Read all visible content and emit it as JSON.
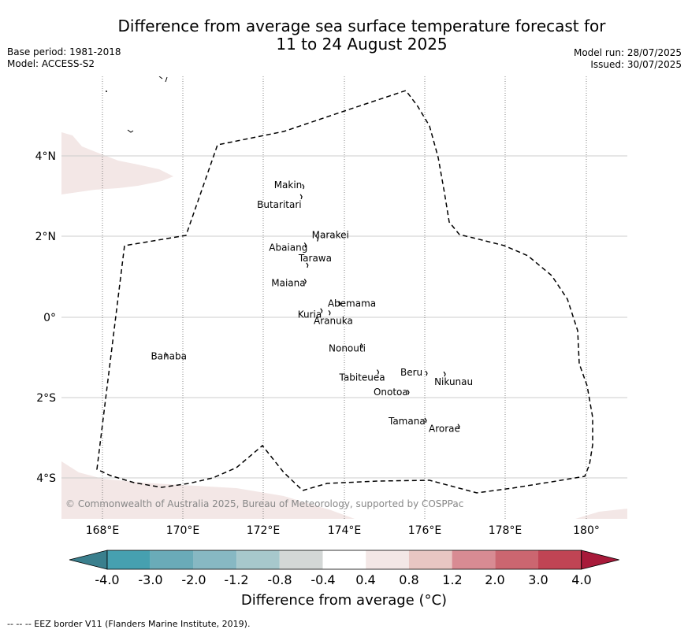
{
  "title": {
    "line1": "Difference from average sea surface temperature forecast for",
    "line2": "11 to 24 August 2025"
  },
  "meta": {
    "base_period": "Base period: 1981-2018",
    "model": "Model: ACCESS-S2",
    "model_run": "Model run: 28/07/2025",
    "issued": "Issued: 30/07/2025"
  },
  "map": {
    "lon_range": [
      167,
      181
    ],
    "lat_range": [
      -5,
      6
    ],
    "lon_ticks": [
      "168°E",
      "170°E",
      "172°E",
      "174°E",
      "176°E",
      "178°E",
      "180°"
    ],
    "lat_ticks": [
      "4°N",
      "2°N",
      "0°",
      "2°S",
      "4°S"
    ],
    "land_color": "#f3e7e6",
    "islands": [
      {
        "name": "Makin",
        "lon": 172.95,
        "lat": 3.3
      },
      {
        "name": "Butaritari",
        "lon": 172.9,
        "lat": 3.05
      },
      {
        "name": "Marakei",
        "lon": 173.3,
        "lat": 2.0
      },
      {
        "name": "Abaiang",
        "lon": 173.0,
        "lat": 1.85
      },
      {
        "name": "Tarawa",
        "lon": 173.05,
        "lat": 1.35
      },
      {
        "name": "Maiana",
        "lon": 173.0,
        "lat": 0.95
      },
      {
        "name": "Abemama",
        "lon": 173.85,
        "lat": 0.4
      },
      {
        "name": "Kuria",
        "lon": 173.4,
        "lat": 0.22
      },
      {
        "name": "Aranuka",
        "lon": 173.6,
        "lat": 0.17
      },
      {
        "name": "Nonouti",
        "lon": 174.4,
        "lat": -0.65
      },
      {
        "name": "Banaba",
        "lon": 169.55,
        "lat": -0.87
      },
      {
        "name": "Tabiteuea",
        "lon": 174.8,
        "lat": -1.3
      },
      {
        "name": "Beru",
        "lon": 176.0,
        "lat": -1.33
      },
      {
        "name": "Nikunau",
        "lon": 176.45,
        "lat": -1.35
      },
      {
        "name": "Onotoa",
        "lon": 175.55,
        "lat": -1.8
      },
      {
        "name": "Tamana",
        "lon": 175.98,
        "lat": -2.5
      },
      {
        "name": "Arorae",
        "lon": 176.8,
        "lat": -2.65
      }
    ],
    "copyright": "© Commonwealth of Australia 2025, Bureau of Meteorology, supported by COSPPac"
  },
  "colorbar": {
    "labels": [
      "-4.0",
      "-3.0",
      "-2.0",
      "-1.2",
      "-0.8",
      "-0.4",
      "0.4",
      "0.8",
      "1.2",
      "2.0",
      "3.0",
      "4.0"
    ],
    "colors": [
      "#3a7f8d",
      "#46a0b0",
      "#6aabb8",
      "#87b8c3",
      "#a7c8cc",
      "#d3d7d6",
      "#ffffff",
      "#f3e7e6",
      "#e8c6c3",
      "#d88b93",
      "#cb6670",
      "#c04454",
      "#a81a3a"
    ],
    "title": "Difference from average (°C)"
  },
  "footnote": "--  --  -- EEZ border V11 (Flanders Marine Institute, 2019)."
}
